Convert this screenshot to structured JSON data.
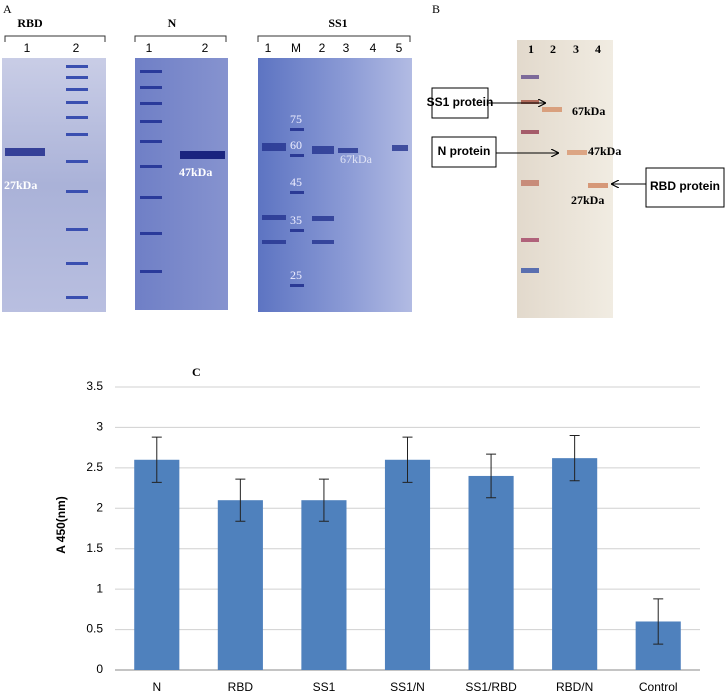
{
  "panel_a": {
    "label": "A",
    "gels": [
      {
        "title": "RBD",
        "lanes": [
          "1",
          "2"
        ],
        "band_label": "27kDa"
      },
      {
        "title": "N",
        "lanes": [
          "1",
          "2"
        ],
        "band_label": "47kDa"
      },
      {
        "title": "SS1",
        "lanes": [
          "1",
          "M",
          "2",
          "3",
          "4",
          "5"
        ],
        "band_label": "67kDa",
        "markers": [
          "75",
          "60",
          "45",
          "35",
          "25"
        ]
      }
    ]
  },
  "panel_b": {
    "label": "B",
    "lanes": [
      "1",
      "2",
      "3",
      "4"
    ],
    "callouts": [
      "SS1 protein",
      "N protein",
      "RBD protein"
    ],
    "sizes": [
      "67kDa",
      "47kDa",
      "27kDa"
    ]
  },
  "chart_data": {
    "type": "bar",
    "panel_label": "C",
    "y_label": "A 450(nm)",
    "categories": [
      "N",
      "RBD",
      "SS1",
      "SS1/N",
      "SS1/RBD",
      "RBD/N",
      "Control"
    ],
    "values": [
      2.6,
      2.1,
      2.1,
      2.6,
      2.4,
      2.62,
      0.6
    ],
    "errors": [
      0.28,
      0.26,
      0.26,
      0.28,
      0.27,
      0.28,
      0.28
    ],
    "color": "#4f81bd",
    "ylim": [
      0,
      3.5
    ],
    "yticks": [
      0,
      0.5,
      1,
      1.5,
      2,
      2.5,
      3,
      3.5
    ],
    "grid": true
  }
}
